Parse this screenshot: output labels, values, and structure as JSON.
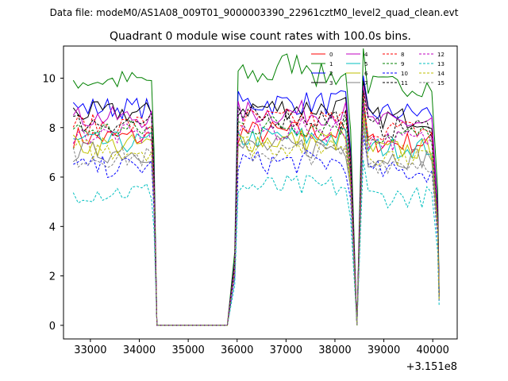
{
  "suptitle": "Data file: modeM0/AS1A08_009T01_9000003390_22961cztM0_level2_quad_clean.evt",
  "chart_data": {
    "type": "line",
    "title": "Quadrant 0 module wise count rates with 100.0s bins.",
    "xlabel": "",
    "ylabel": "",
    "x_offset_label": "+3.151e8",
    "xlim": [
      32450,
      40500
    ],
    "ylim": [
      -0.55,
      11.3
    ],
    "xticks": [
      33000,
      34000,
      35000,
      36000,
      37000,
      38000,
      39000,
      40000
    ],
    "xtick_labels": [
      "33000",
      "34000",
      "35000",
      "36000",
      "37000",
      "38000",
      "39000",
      "40000"
    ],
    "yticks": [
      0,
      2,
      4,
      6,
      8,
      10
    ],
    "ytick_labels": [
      "0",
      "2",
      "4",
      "6",
      "8",
      "10"
    ],
    "grid": false,
    "legend_position": "top-right",
    "segments": [
      {
        "start": 32650,
        "n_flat": 16
      },
      {
        "start": 35800,
        "n_flat": 0,
        "active_start": 36000,
        "active_end": 38150,
        "end": 38450
      },
      {
        "start": 38450,
        "active_start": 38600,
        "active_end": 39950,
        "end": 40130
      }
    ],
    "series": [
      {
        "name": "0",
        "color": "#ff0000",
        "dash": "solid",
        "level": 7.6
      },
      {
        "name": "1",
        "color": "#008000",
        "dash": "solid",
        "level": 9.9
      },
      {
        "name": "2",
        "color": "#0000ff",
        "dash": "solid",
        "level": 8.8
      },
      {
        "name": "3",
        "color": "#000000",
        "dash": "solid",
        "level": 8.6
      },
      {
        "name": "4",
        "color": "#c000c0",
        "dash": "solid",
        "level": 8.4
      },
      {
        "name": "5",
        "color": "#00bfbf",
        "dash": "solid",
        "level": 7.4
      },
      {
        "name": "6",
        "color": "#bfbf00",
        "dash": "solid",
        "level": 7.3
      },
      {
        "name": "7",
        "color": "#808080",
        "dash": "solid",
        "level": 7.0
      },
      {
        "name": "8",
        "color": "#ff0000",
        "dash": "dashed",
        "level": 8.1
      },
      {
        "name": "9",
        "color": "#008000",
        "dash": "dashed",
        "level": 7.9
      },
      {
        "name": "10",
        "color": "#0000ff",
        "dash": "dashed",
        "level": 6.4
      },
      {
        "name": "11",
        "color": "#000000",
        "dash": "dashed",
        "level": 8.2
      },
      {
        "name": "12",
        "color": "#c000c0",
        "dash": "dashed",
        "level": 7.7
      },
      {
        "name": "13",
        "color": "#00bfbf",
        "dash": "dashed",
        "level": 5.4
      },
      {
        "name": "14",
        "color": "#bfbf00",
        "dash": "dashed",
        "level": 7.1
      },
      {
        "name": "15",
        "color": "#808080",
        "dash": "dashed",
        "level": 6.8
      }
    ]
  }
}
